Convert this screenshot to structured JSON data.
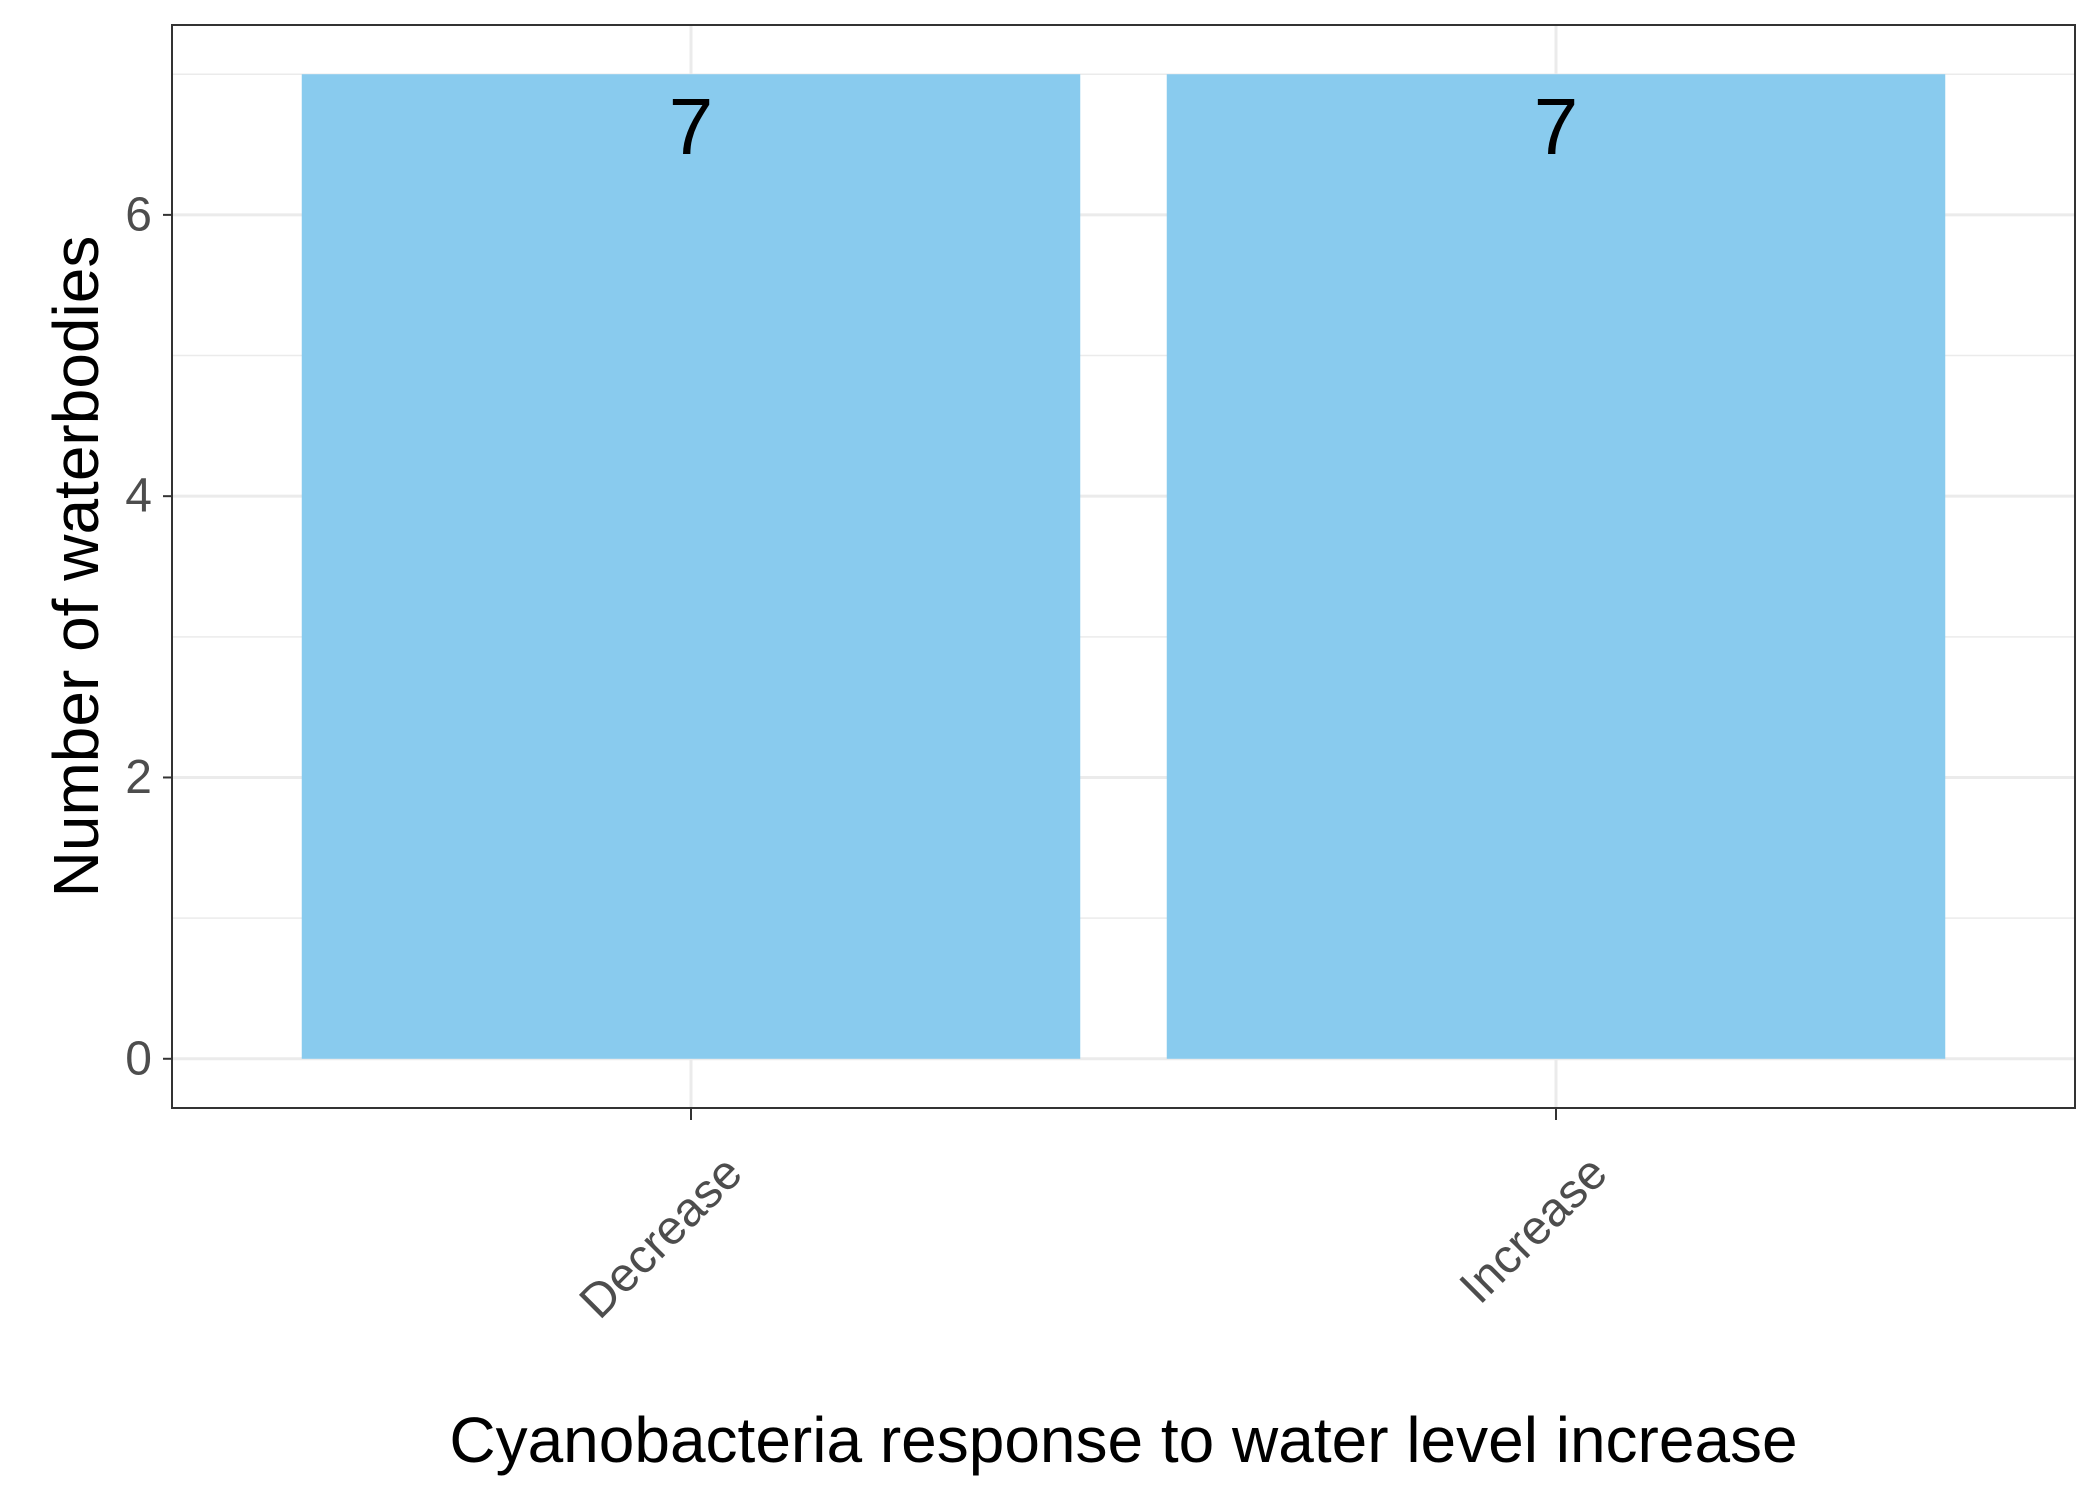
{
  "chart_data": {
    "type": "bar",
    "categories": [
      "Decrease",
      "Increase"
    ],
    "values": [
      7,
      7
    ],
    "data_labels": [
      "7",
      "7"
    ],
    "xlabel": "Cyanobacteria response to water level increase",
    "ylabel": "Number of waterbodies",
    "ylim": [
      -0.35,
      7.35
    ],
    "yticks": [
      0,
      2,
      4,
      6
    ],
    "yticks_minor": [
      1,
      3,
      5,
      7
    ],
    "grid": true,
    "legend": "none",
    "bar_color": "#89CBEE",
    "grid_color": "#EBEBEB",
    "panel_border_color": "#333333",
    "tick_label_color": "#4D4D4D"
  }
}
